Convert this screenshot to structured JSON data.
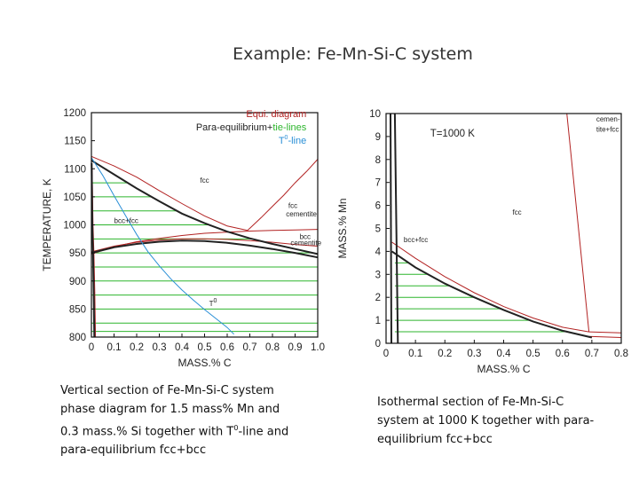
{
  "slide": {
    "title": "Example: Fe-Mn-Si-C system",
    "caption_left_parts": [
      "Vertical section of Fe-Mn-Si-C system\nphase diagram for 1.5 mass% Mn and\n0.3 mass.% Si together with T",
      "0",
      "-line and\npara-equilibrium fcc+bcc"
    ],
    "caption_right": "Isothermal section of Fe-Mn-Si-C\nsystem at 1000 K together with para-\nequilibrium fcc+bcc"
  },
  "colors": {
    "equilibrium": "#b22222",
    "paraequilibrium": "#222222",
    "tie_lines": "#2db52d",
    "t0_line": "#2a8fd6",
    "black": "#111111"
  },
  "chart_data": [
    {
      "type": "line",
      "title": "",
      "xlabel": "MASS.% C",
      "ylabel": "TEMPERATURE, K",
      "xlim": [
        0,
        1.0
      ],
      "ylim": [
        800,
        1200
      ],
      "xticks": [
        0,
        0.1,
        0.2,
        0.3,
        0.4,
        0.5,
        0.6,
        0.7,
        0.8,
        0.9,
        1.0
      ],
      "xtick_labels": [
        "0",
        "0.1",
        "0.2",
        "0.3",
        "0.4",
        "0.5",
        "0.6",
        "0.7",
        "0.8",
        "0.9",
        "1.0"
      ],
      "yticks": [
        800,
        850,
        900,
        950,
        1000,
        1050,
        1100,
        1150,
        1200
      ],
      "ytick_labels": [
        "800",
        "850",
        "900",
        "950",
        "1000",
        "1050",
        "1100",
        "1150",
        "1200"
      ],
      "legend": {
        "position": "top-right",
        "entries": [
          {
            "text": "Equi. diagram",
            "color": "#b22222"
          },
          {
            "parts": [
              "Para-equilibrium+",
              "tie-lines"
            ],
            "colors": [
              "#222222",
              "#2db52d"
            ]
          },
          {
            "parts": [
              "T",
              "0",
              "-line"
            ],
            "color": "#2a8fd6"
          }
        ]
      },
      "region_labels": [
        {
          "text": "fcc",
          "x": 0.48,
          "y": 1075
        },
        {
          "text": "fcc",
          "x": 0.87,
          "y": 1030
        },
        {
          "text": "cementite",
          "x": 0.86,
          "y": 1015
        },
        {
          "text": "bcc+fcc",
          "x": 0.1,
          "y": 1003
        },
        {
          "text": "bcc",
          "x": 0.92,
          "y": 975
        },
        {
          "text": "cementite",
          "x": 0.88,
          "y": 964
        },
        {
          "parts": [
            "T",
            "0"
          ],
          "x": 0.52,
          "y": 855
        }
      ],
      "series": [
        {
          "name": "Equi. diagram",
          "role": "equilibrium",
          "lines": [
            {
              "x": [
                0,
                0.1,
                0.2,
                0.3,
                0.4,
                0.5,
                0.6,
                0.69
              ],
              "y": [
                1122,
                1105,
                1085,
                1061,
                1038,
                1016,
                998,
                990
              ]
            },
            {
              "x": [
                0.69,
                0.75,
                0.8,
                0.85,
                0.9,
                0.95,
                1.0
              ],
              "y": [
                990,
                1013,
                1033,
                1053,
                1075,
                1095,
                1117
              ]
            },
            {
              "x": [
                0,
                0.1,
                0.2,
                0.3,
                0.4,
                0.5,
                0.6,
                0.7,
                0.8,
                0.9,
                1.0
              ],
              "y": [
                948,
                961,
                970,
                976,
                981,
                985,
                987,
                989,
                990,
                991,
                992
              ]
            },
            {
              "x": [
                0,
                0.1,
                0.2,
                0.3,
                0.4,
                0.5,
                0.6,
                0.7,
                0.8,
                0.9,
                1.0
              ],
              "y": [
                952,
                962,
                969,
                973,
                975,
                975,
                974,
                972,
                969,
                965,
                962
              ]
            },
            {
              "x": [
                0.003,
                0.007,
                0.011,
                0.015,
                0.018
              ],
              "y": [
                1100,
                1000,
                950,
                880,
                800
              ]
            }
          ]
        },
        {
          "name": "Para-equilibrium",
          "role": "paraequilibrium",
          "lines": [
            {
              "x": [
                0,
                0.1,
                0.2,
                0.3,
                0.4,
                0.5,
                0.6,
                0.7,
                0.8,
                0.9,
                1.0
              ],
              "y": [
                1115,
                1090,
                1065,
                1042,
                1020,
                1003,
                988,
                976,
                966,
                957,
                948
              ]
            },
            {
              "x": [
                0,
                0.1,
                0.2,
                0.3,
                0.4,
                0.5,
                0.6,
                0.7,
                0.8,
                0.9,
                1.0
              ],
              "y": [
                950,
                960,
                966,
                970,
                972,
                971,
                968,
                963,
                957,
                950,
                942
              ]
            },
            {
              "x": [
                0.001,
                0.004,
                0.007,
                0.01,
                0.013
              ],
              "y": [
                1110,
                1000,
                950,
                880,
                800
              ]
            }
          ]
        },
        {
          "name": "T0-line",
          "role": "t0",
          "lines": [
            {
              "x": [
                0,
                0.05,
                0.1,
                0.15,
                0.2,
                0.25,
                0.3,
                0.35,
                0.4,
                0.45,
                0.5,
                0.55,
                0.6,
                0.63
              ],
              "y": [
                1120,
                1088,
                1052,
                1017,
                983,
                952,
                927,
                904,
                884,
                866,
                849,
                833,
                817,
                805
              ]
            }
          ]
        }
      ],
      "tie_lines": {
        "y": [
          1075,
          1050,
          1025,
          1000,
          975,
          950,
          925,
          900,
          875,
          850,
          825,
          810
        ],
        "x_start": 0
      }
    },
    {
      "type": "line",
      "title": "T=1000 K",
      "xlabel": "MASS.% C",
      "ylabel": "MASS.% Mn",
      "xlim": [
        0,
        0.8
      ],
      "ylim": [
        0,
        10
      ],
      "xticks": [
        0,
        0.1,
        0.2,
        0.3,
        0.4,
        0.5,
        0.6,
        0.7,
        0.8
      ],
      "xtick_labels": [
        "0",
        "0.1",
        "0.2",
        "0.3",
        "0.4",
        "0.5",
        "0.6",
        "0.7",
        "0.8"
      ],
      "yticks": [
        0,
        1,
        2,
        3,
        4,
        5,
        6,
        7,
        8,
        9,
        10
      ],
      "ytick_labels": [
        "0",
        "1",
        "2",
        "3",
        "4",
        "5",
        "6",
        "7",
        "8",
        "9",
        "10"
      ],
      "region_labels": [
        {
          "text": "cemen-",
          "x": 0.715,
          "y": 9.65
        },
        {
          "text": "tite+fcc",
          "x": 0.715,
          "y": 9.2
        },
        {
          "text": "fcc",
          "x": 0.43,
          "y": 5.6
        },
        {
          "text": "bcc+fcc",
          "x": 0.06,
          "y": 4.4
        }
      ],
      "series": [
        {
          "name": "Equilibrium",
          "role": "equilibrium",
          "lines": [
            {
              "x": [
                0.02,
                0.1,
                0.2,
                0.3,
                0.4,
                0.5,
                0.6,
                0.69
              ],
              "y": [
                4.4,
                3.7,
                2.9,
                2.2,
                1.6,
                1.1,
                0.7,
                0.5
              ]
            },
            {
              "x": [
                0.615,
                0.69
              ],
              "y": [
                10,
                0.5
              ]
            },
            {
              "x": [
                0.69,
                0.8
              ],
              "y": [
                0.5,
                0.45
              ]
            },
            {
              "x": [
                0.69,
                0.8
              ],
              "y": [
                0.3,
                0.25
              ]
            }
          ]
        },
        {
          "name": "Para-equilibrium",
          "role": "paraequilibrium",
          "lines": [
            {
              "x": [
                0.02,
                0.1,
                0.2,
                0.3,
                0.4,
                0.5,
                0.6,
                0.7
              ],
              "y": [
                4.0,
                3.3,
                2.6,
                2.0,
                1.45,
                0.95,
                0.55,
                0.25
              ]
            },
            {
              "x": [
                0.015,
                0.018
              ],
              "y": [
                10,
                0
              ]
            },
            {
              "x": [
                0.03,
                0.04
              ],
              "y": [
                10,
                0
              ]
            }
          ]
        }
      ],
      "tie_lines": {
        "y": [
          3.5,
          3.0,
          2.5,
          2.0,
          1.5,
          1.0,
          0.5
        ],
        "x_start": 0.03
      }
    }
  ]
}
